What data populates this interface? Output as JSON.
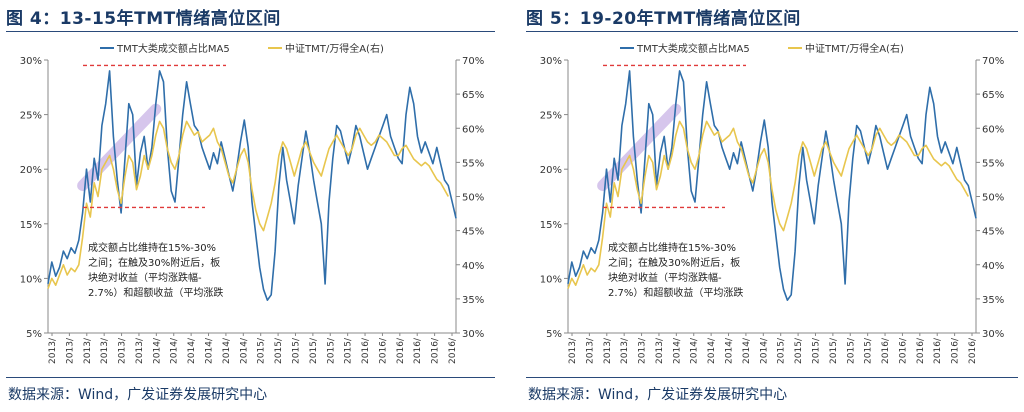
{
  "figures": [
    {
      "title": "图 4：13-15年TMT情绪高位区间",
      "source": "数据来源：Wind，广发证券发展研究中心",
      "annotation_lines": [
        "成交额占比维持在15%-30%",
        "之间；在触及30%附近后，板",
        "块绝对收益（平均涨跌幅-",
        "2.7%）和超额收益（平均涨跌"
      ]
    },
    {
      "title": "图 5：19-20年TMT情绪高位区间",
      "source": "数据来源：Wind，广发证券发展研究中心",
      "annotation_lines": [
        "成交额占比维持在15%-30%",
        "之间；在触及30%附近后，板",
        "块绝对收益（平均涨跌幅-",
        "2.7%）和超额收益（平均涨跌"
      ]
    }
  ],
  "chart_data": {
    "type": "line",
    "series": [
      {
        "name": "TMT大类成交额占比MA5",
        "axis": "left",
        "color": "#2f6eaa",
        "values": [
          9.5,
          11.5,
          10.2,
          11,
          12.5,
          11.8,
          12.8,
          12.3,
          13.5,
          16,
          20,
          17,
          21,
          19,
          24,
          26,
          29,
          23,
          19,
          16,
          21,
          26,
          25,
          18.5,
          21.5,
          23,
          20,
          22,
          26,
          29,
          28,
          22,
          18,
          17,
          21,
          25,
          28,
          26,
          24,
          23.5,
          22,
          21,
          20,
          21.5,
          20.5,
          22.5,
          21,
          19.5,
          18,
          20,
          22.5,
          24.5,
          22,
          17,
          14,
          11,
          9,
          8,
          8.5,
          12.5,
          18.5,
          22,
          19,
          17,
          15,
          18.5,
          21,
          23.5,
          21.5,
          19,
          17,
          15,
          9.5,
          17,
          21,
          24,
          23.5,
          22,
          20.5,
          22,
          24,
          23,
          21.5,
          20,
          21,
          22,
          23,
          24,
          25,
          23,
          22,
          21,
          20.5,
          25,
          27.5,
          26,
          23,
          21.5,
          22.5,
          21.5,
          20.5,
          22,
          20.5,
          19,
          18.5,
          17,
          15.5
        ]
      },
      {
        "name": "中证TMT/万得全A(右)",
        "axis": "right",
        "color": "#e8c64e",
        "values": [
          36.5,
          38,
          37,
          38.5,
          40,
          38.5,
          39.5,
          39,
          40,
          44,
          49,
          47,
          52,
          50,
          54,
          55,
          56,
          54,
          51,
          49,
          53,
          56,
          55,
          51,
          53,
          56,
          54,
          56,
          59,
          61,
          60,
          57,
          55,
          54,
          56,
          59,
          61,
          60,
          59,
          59.5,
          58,
          58.5,
          59,
          60,
          58,
          57,
          55,
          53,
          52,
          54,
          56,
          57,
          55,
          51,
          48,
          46,
          45,
          47,
          49,
          52,
          56,
          58,
          57,
          55,
          53,
          55,
          57,
          58,
          56.5,
          55,
          54,
          53,
          55,
          57,
          58,
          59,
          58,
          57,
          56,
          57,
          59,
          60,
          59,
          58,
          57.5,
          58,
          59,
          58.5,
          58,
          57,
          56,
          56,
          57,
          57.5,
          56.5,
          55.5,
          55,
          54.5,
          55,
          54.5,
          53.5,
          52.5,
          52,
          51,
          50
        ]
      }
    ],
    "x_tick_labels": [
      "2013/",
      "2013/",
      "2013/",
      "2013/",
      "2013/",
      "2013/",
      "2014/",
      "2014/",
      "2014/",
      "2014/",
      "2014/",
      "2014/",
      "2015/",
      "2015/",
      "2015/",
      "2015/",
      "2015/",
      "2015/",
      "2016/",
      "2016/",
      "2016/",
      "2016/",
      "2016/",
      "2016/"
    ],
    "y_left": {
      "ticks": [
        "5%",
        "10%",
        "15%",
        "20%",
        "25%",
        "30%"
      ],
      "min": 5,
      "max": 30
    },
    "y_right": {
      "ticks": [
        "30%",
        "35%",
        "40%",
        "45%",
        "50%",
        "55%",
        "60%",
        "65%",
        "70%"
      ],
      "min": 30,
      "max": 70
    },
    "reference_lines_left_axis": [
      29.5,
      16.5
    ],
    "grid": false,
    "legend_position": "top"
  }
}
